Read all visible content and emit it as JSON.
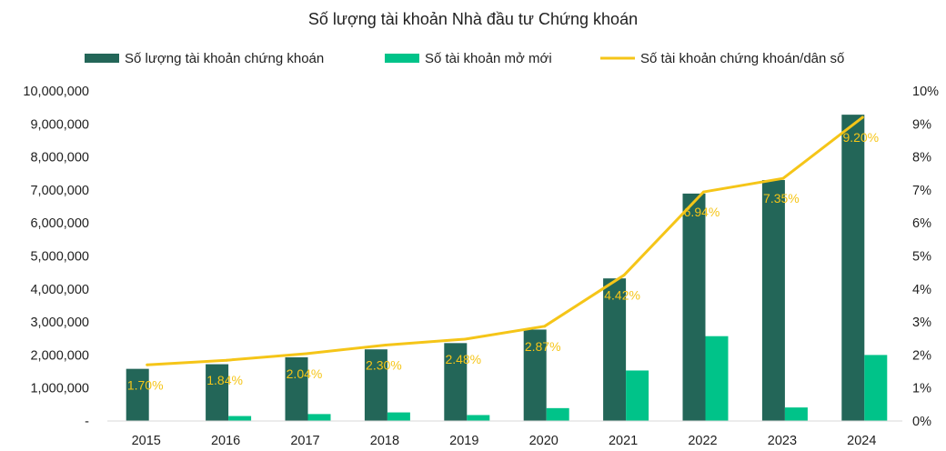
{
  "chart_data": {
    "type": "bar+line",
    "title": "Số lượng tài khoản Nhà đầu tư Chứng khoán",
    "categories": [
      "2015",
      "2016",
      "2017",
      "2018",
      "2019",
      "2020",
      "2021",
      "2022",
      "2023",
      "2024"
    ],
    "series": [
      {
        "name": "Số lượng tài khoản chứng khoán",
        "type": "bar",
        "axis": "left",
        "color": "#236658",
        "values": [
          1580000,
          1720000,
          1930000,
          2170000,
          2360000,
          2770000,
          4320000,
          6890000,
          7300000,
          9280000
        ]
      },
      {
        "name": "Số tài khoản mở mới",
        "type": "bar",
        "axis": "left",
        "color": "#00C389",
        "values": [
          0,
          150000,
          210000,
          260000,
          180000,
          390000,
          1530000,
          2570000,
          410000,
          2000000
        ]
      },
      {
        "name": "Số tài khoản chứng khoán/dân số",
        "type": "line",
        "axis": "right",
        "color": "#F5C518",
        "values": [
          1.7,
          1.84,
          2.04,
          2.3,
          2.48,
          2.87,
          4.42,
          6.94,
          7.35,
          9.2
        ],
        "data_labels": [
          "1.70%",
          "1.84%",
          "2.04%",
          "2.30%",
          "2.48%",
          "2.87%",
          "4.42%",
          "6.94%",
          "7.35%",
          "9.20%"
        ]
      }
    ],
    "y_left": {
      "min": 0,
      "max": 10000000,
      "tick_values": [
        0,
        1000000,
        2000000,
        3000000,
        4000000,
        5000000,
        6000000,
        7000000,
        8000000,
        9000000,
        10000000
      ],
      "tick_labels": [
        "-",
        "1,000,000",
        "2,000,000",
        "3,000,000",
        "4,000,000",
        "5,000,000",
        "6,000,000",
        "7,000,000",
        "8,000,000",
        "9,000,000",
        "10,000,000"
      ]
    },
    "y_right": {
      "min": 0,
      "max": 10,
      "tick_values": [
        0,
        1,
        2,
        3,
        4,
        5,
        6,
        7,
        8,
        9,
        10
      ],
      "tick_labels": [
        "0%",
        "1%",
        "2%",
        "3%",
        "4%",
        "5%",
        "6%",
        "7%",
        "8%",
        "9%",
        "10%"
      ]
    },
    "grid": false,
    "legend_position": "top"
  }
}
